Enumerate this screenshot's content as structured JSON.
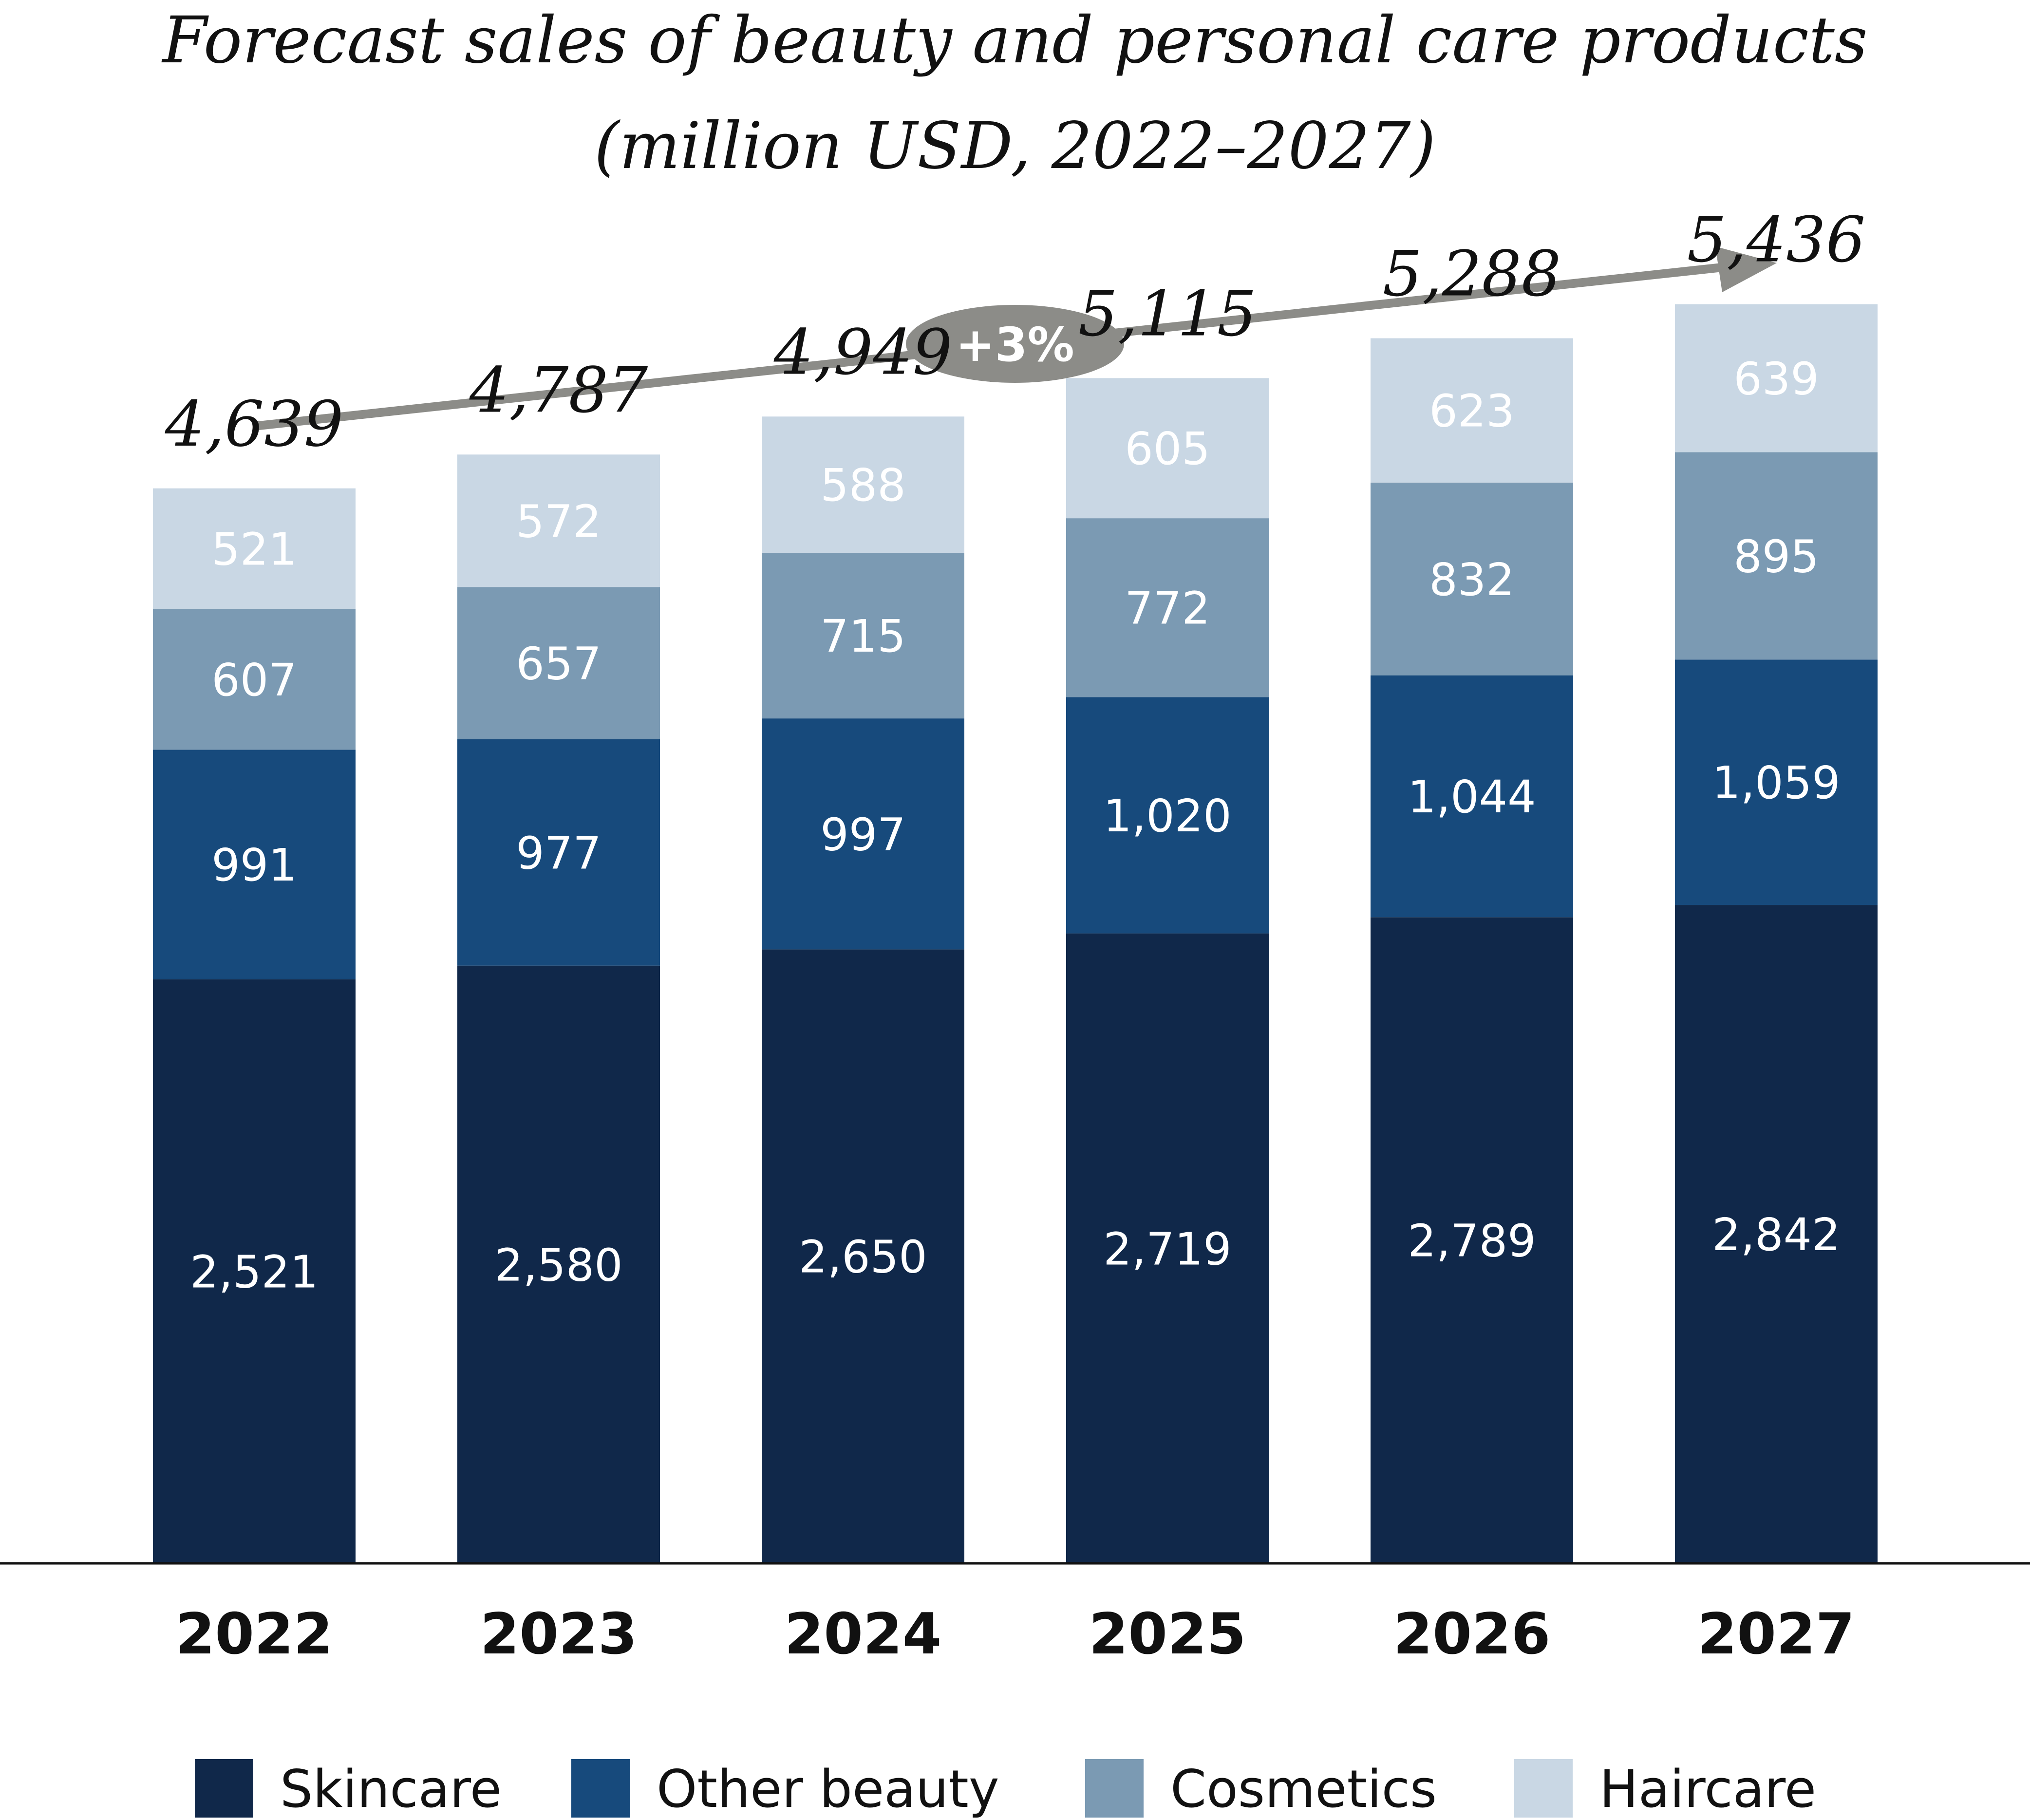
{
  "chart_data": {
    "type": "bar",
    "stacked": true,
    "title": "Forecast sales of beauty and personal care products",
    "subtitle": "(million USD, 2022–2027)",
    "categories": [
      "2022",
      "2023",
      "2024",
      "2025",
      "2026",
      "2027"
    ],
    "series": [
      {
        "name": "Skincare",
        "color": "#10284a",
        "values": [
          2521,
          2580,
          2650,
          2719,
          2789,
          2842
        ],
        "labels": [
          "2,521",
          "2,580",
          "2,650",
          "2,719",
          "2,789",
          "2,842"
        ]
      },
      {
        "name": "Other beauty",
        "color": "#174a7c",
        "values": [
          991,
          977,
          997,
          1020,
          1044,
          1059
        ],
        "labels": [
          "991",
          "977",
          "997",
          "1,020",
          "1,044",
          "1,059"
        ]
      },
      {
        "name": "Cosmetics",
        "color": "#7b9ab3",
        "values": [
          607,
          657,
          715,
          772,
          832,
          895
        ],
        "labels": [
          "607",
          "657",
          "715",
          "772",
          "832",
          "895"
        ]
      },
      {
        "name": "Haircare",
        "color": "#c9d7e4",
        "values": [
          521,
          572,
          588,
          605,
          623,
          639
        ],
        "labels": [
          "521",
          "572",
          "588",
          "605",
          "623",
          "639"
        ]
      }
    ],
    "totals": [
      "4,639",
      "4,787",
      "4,949",
      "5,115",
      "5,288",
      "5,436"
    ],
    "growth_annotation": "+3%",
    "annotation_color": "#8c8c88",
    "legend_placement": "bottom",
    "grid": false,
    "ylim": [
      0,
      5800
    ]
  }
}
